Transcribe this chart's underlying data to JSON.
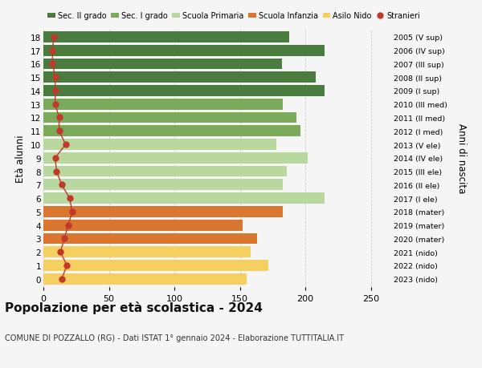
{
  "ages": [
    18,
    17,
    16,
    15,
    14,
    13,
    12,
    11,
    10,
    9,
    8,
    7,
    6,
    5,
    4,
    3,
    2,
    1,
    0
  ],
  "years": [
    "2005 (V sup)",
    "2006 (IV sup)",
    "2007 (III sup)",
    "2008 (II sup)",
    "2009 (I sup)",
    "2010 (III med)",
    "2011 (II med)",
    "2012 (I med)",
    "2013 (V ele)",
    "2014 (IV ele)",
    "2015 (III ele)",
    "2016 (II ele)",
    "2017 (I ele)",
    "2018 (mater)",
    "2019 (mater)",
    "2020 (mater)",
    "2021 (nido)",
    "2022 (nido)",
    "2023 (nido)"
  ],
  "values": [
    188,
    215,
    182,
    208,
    215,
    183,
    193,
    196,
    178,
    202,
    186,
    183,
    215,
    183,
    152,
    163,
    158,
    172,
    155
  ],
  "stranieri": [
    8,
    7,
    7,
    9,
    9,
    9,
    12,
    12,
    17,
    9,
    10,
    14,
    20,
    22,
    19,
    16,
    13,
    18,
    14
  ],
  "bar_colors": [
    "#4a7c3f",
    "#4a7c3f",
    "#4a7c3f",
    "#4a7c3f",
    "#4a7c3f",
    "#7aaa5a",
    "#7aaa5a",
    "#7aaa5a",
    "#b8d8a0",
    "#b8d8a0",
    "#b8d8a0",
    "#b8d8a0",
    "#b8d8a0",
    "#d97630",
    "#d97630",
    "#d97630",
    "#f5d060",
    "#f5d060",
    "#f5d060"
  ],
  "legend_labels": [
    "Sec. II grado",
    "Sec. I grado",
    "Scuola Primaria",
    "Scuola Infanzia",
    "Asilo Nido",
    "Stranieri"
  ],
  "legend_colors": [
    "#4a7c3f",
    "#7aaa5a",
    "#b8d8a0",
    "#d97630",
    "#f5d060",
    "#c0392b"
  ],
  "stranieri_color": "#c0392b",
  "title": "Popolazione per età scolastica - 2024",
  "subtitle": "COMUNE DI POZZALLO (RG) - Dati ISTAT 1° gennaio 2024 - Elaborazione TUTTITALIA.IT",
  "ylabel": "Età alunni",
  "right_ylabel": "Anni di nascita",
  "xlim": [
    0,
    265
  ],
  "xticks": [
    0,
    50,
    100,
    150,
    200,
    250
  ],
  "bg_color": "#f5f5f5",
  "grid_color": "#cccccc",
  "title_fontsize": 11,
  "subtitle_fontsize": 7,
  "bar_height": 0.82
}
